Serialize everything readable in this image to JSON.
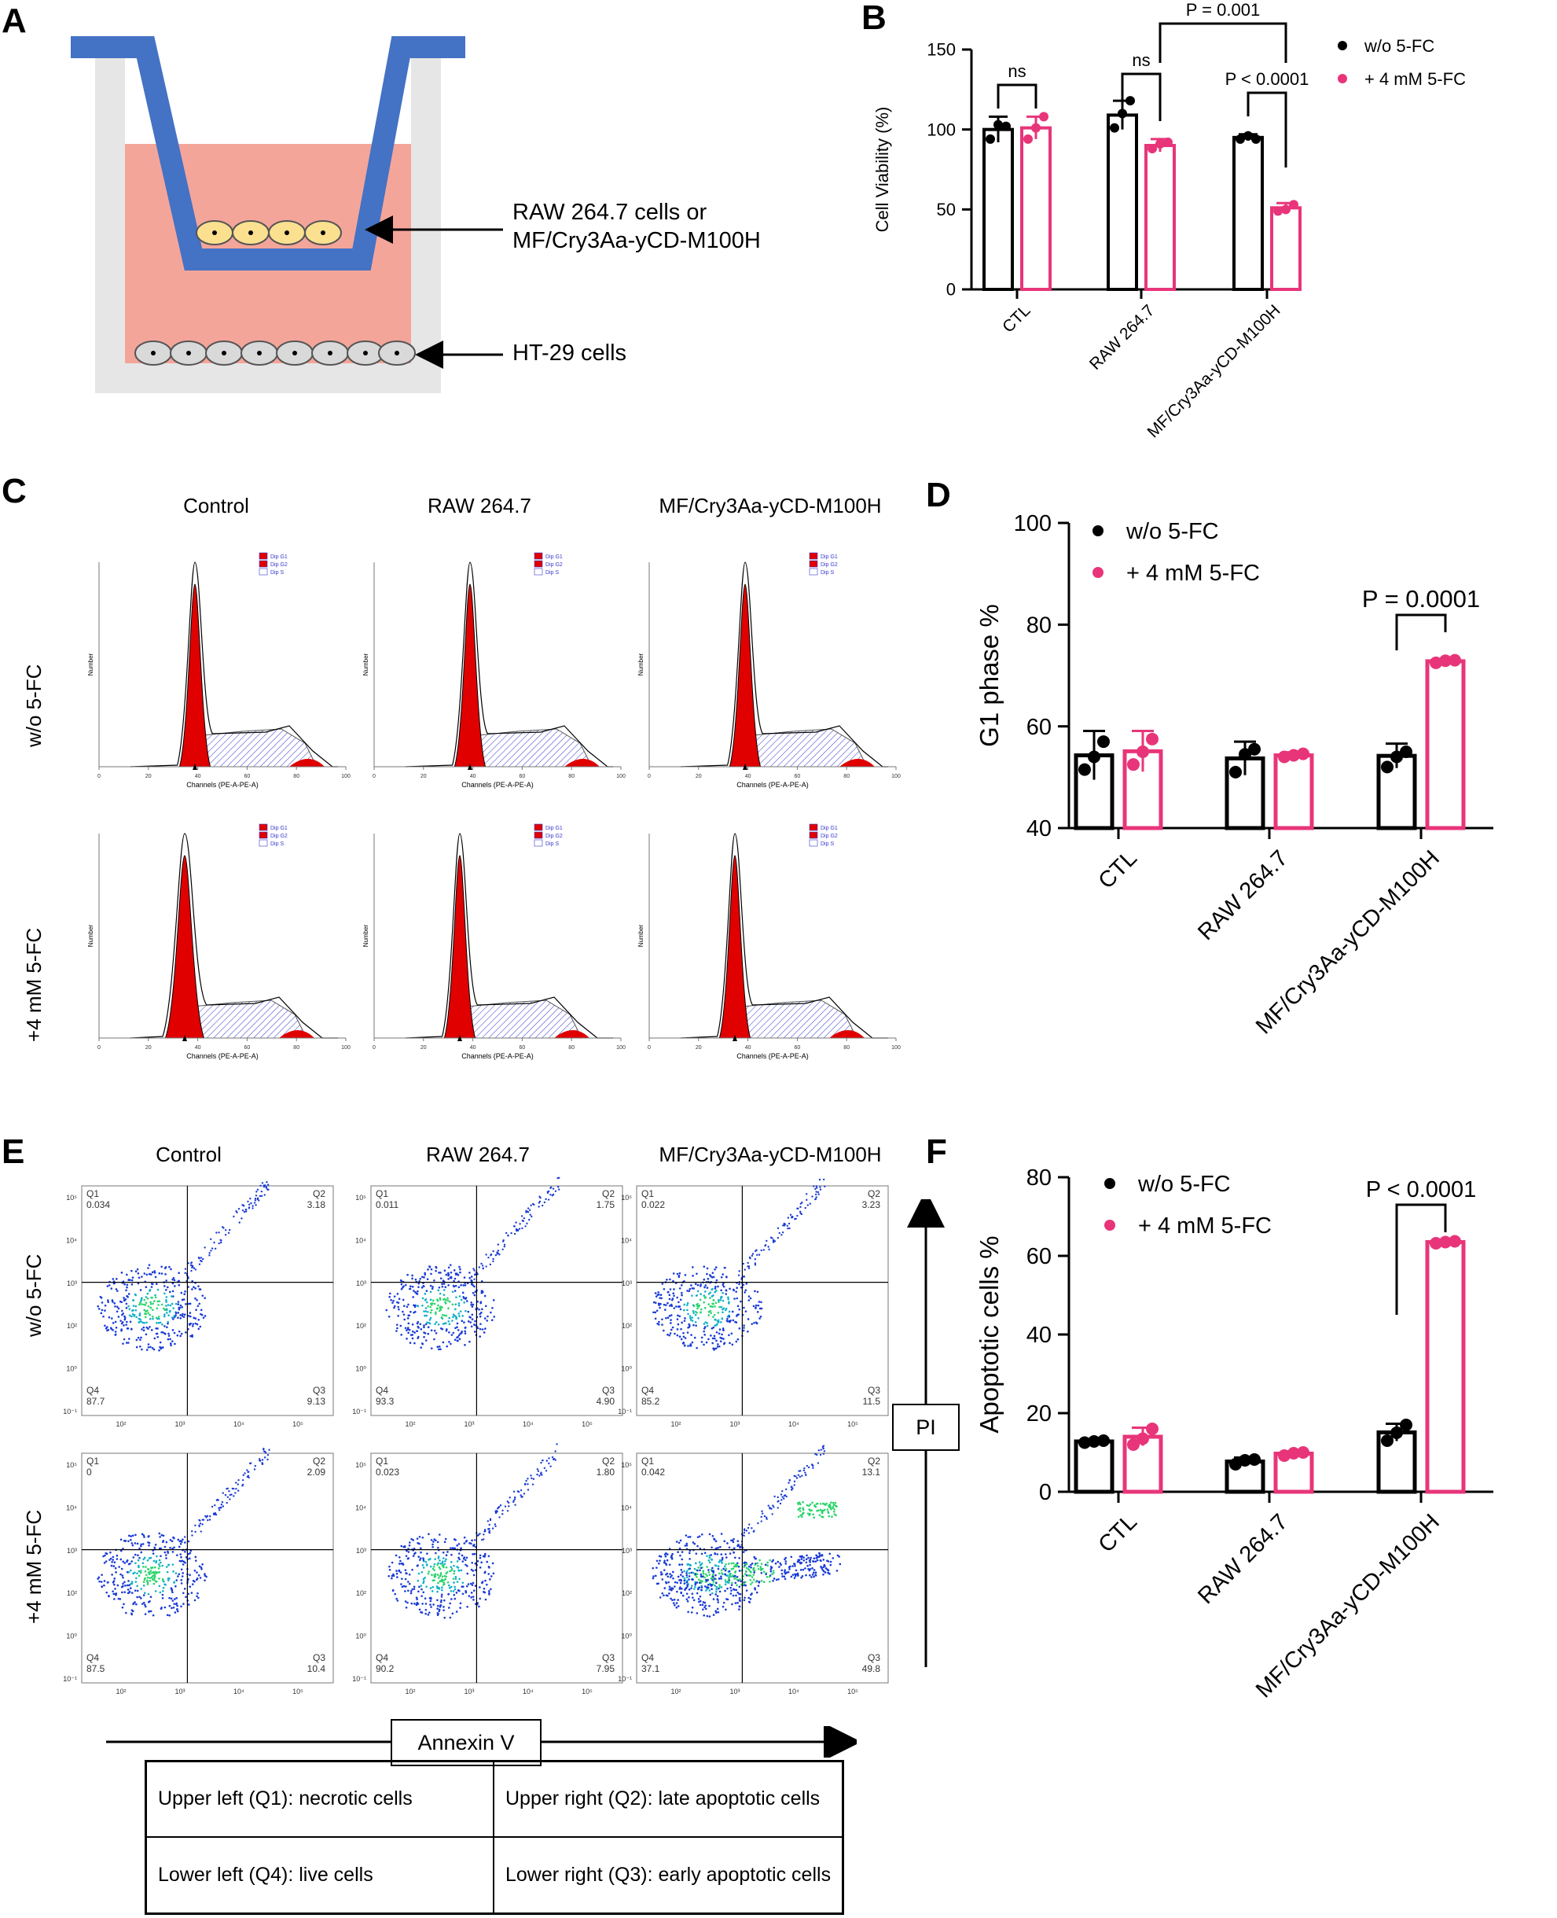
{
  "panels": {
    "a": "A",
    "b": "B",
    "c": "C",
    "d": "D",
    "e": "E",
    "f": "F"
  },
  "schematic": {
    "insert_label_line1": "RAW 264.7 cells or",
    "insert_label_line2": "MF/Cry3Aa-yCD-M100H",
    "bottom_label": "HT-29 cells"
  },
  "legend": {
    "w": "w/o 5-FC",
    "p": "+ 4 mM 5-FC"
  },
  "colors": {
    "w": "#000000",
    "p": "#e8357a",
    "insert": "#4472c4",
    "medium": "#f4a59a",
    "well": "#e6e6e6",
    "hist_red": "#e00000",
    "hatch": "#3a3ad0"
  },
  "conditions": {
    "control": "Control",
    "raw": "RAW 264.7",
    "mf": "MF/Cry3Aa-yCD-M100H",
    "row1": "w/o 5-FC",
    "row2": "+4 mM 5-FC"
  },
  "histogram": {
    "legend": [
      "Dip G1",
      "Dip G2",
      "Dip S"
    ],
    "xlabel": "Channels (PE-A-PE-A)",
    "ylabel": "Number",
    "xticks": [
      "0",
      "20",
      "40",
      "60",
      "80",
      "100"
    ]
  },
  "flow": {
    "quadrants": [
      {
        "q1": "0.034",
        "q2": "3.18",
        "q3": "9.13",
        "q4": "87.7"
      },
      {
        "q1": "0.011",
        "q2": "1.75",
        "q3": "4.90",
        "q4": "93.3"
      },
      {
        "q1": "0.022",
        "q2": "3.23",
        "q3": "11.5",
        "q4": "85.2"
      },
      {
        "q1": "0",
        "q2": "2.09",
        "q3": "10.4",
        "q4": "87.5"
      },
      {
        "q1": "0.023",
        "q2": "1.80",
        "q3": "7.95",
        "q4": "90.2"
      },
      {
        "q1": "0.042",
        "q2": "13.1",
        "q3": "49.8",
        "q4": "37.1"
      }
    ],
    "qnames": [
      "Q1",
      "Q2",
      "Q3",
      "Q4"
    ],
    "yaxis_label": "PI",
    "xaxis_label": "Annexin V",
    "ticks": [
      "10⁵",
      "10⁴",
      "10³",
      "10²",
      "10⁰",
      "10⁻¹"
    ],
    "xticks": [
      "10²",
      "10³",
      "10⁴",
      "10⁵"
    ]
  },
  "table": {
    "ul": "Upper left (Q1): necrotic cells",
    "ur": "Upper right (Q2): late apoptotic cells",
    "ll": "Lower left (Q4): live cells",
    "lr": "Lower right (Q3): early apoptotic cells"
  },
  "chart_data": [
    {
      "id": "B",
      "type": "bar",
      "categories": [
        "CTL",
        "RAW 264.7",
        "MF/Cry3Aa-yCD-M100H"
      ],
      "series": [
        {
          "name": "w/o 5-FC",
          "values": [
            100,
            109,
            95
          ],
          "err": [
            8,
            9,
            2
          ],
          "points": [
            [
              94,
              103,
              102
            ],
            [
              101,
              110,
              118
            ],
            [
              94,
              96,
              94
            ]
          ]
        },
        {
          "name": "+ 4 mM 5-FC",
          "values": [
            101,
            90,
            51
          ],
          "err": [
            7,
            4,
            3
          ],
          "points": [
            [
              94,
              101,
              108
            ],
            [
              88,
              91,
              92
            ],
            [
              49,
              50,
              53
            ]
          ]
        }
      ],
      "ylabel": "Cell Viability (%)",
      "ylim": [
        0,
        150
      ],
      "yticks": [
        "0",
        "50",
        "100",
        "150"
      ],
      "annotations": [
        {
          "text": "ns",
          "a": [
            0,
            0
          ],
          "b": [
            0,
            1
          ]
        },
        {
          "text": "ns",
          "a": [
            1,
            0
          ],
          "b": [
            1,
            1
          ]
        },
        {
          "text": "P < 0.0001",
          "a": [
            2,
            0
          ],
          "b": [
            2,
            1
          ]
        },
        {
          "text": "P = 0.001",
          "a": [
            1,
            1
          ],
          "b": [
            2,
            1
          ]
        }
      ]
    },
    {
      "id": "D",
      "type": "bar",
      "categories": [
        "CTL",
        "RAW 264.7",
        "MF/Cry3Aa-yCD-M100H"
      ],
      "series": [
        {
          "name": "w/o 5-FC",
          "values": [
            54.3,
            53.7,
            54.2
          ],
          "err": [
            4.8,
            3.3,
            2.4
          ],
          "points": [
            [
              51.5,
              54,
              57
            ],
            [
              51,
              54.5,
              55.5
            ],
            [
              52,
              54,
              55
            ]
          ]
        },
        {
          "name": "+ 4 mM 5-FC",
          "values": [
            55.1,
            54.3,
            72.8
          ],
          "err": [
            4,
            0.6,
            0.3
          ],
          "points": [
            [
              52.5,
              55,
              57.5
            ],
            [
              54,
              54.3,
              54.6
            ],
            [
              72.5,
              72.9,
              73
            ]
          ]
        }
      ],
      "ylabel": "G1 phase %",
      "ylim": [
        40,
        100
      ],
      "yticks": [
        "40",
        "60",
        "80",
        "100"
      ],
      "annotations": [
        {
          "text": "P = 0.0001",
          "a": [
            2,
            0
          ],
          "b": [
            2,
            1
          ]
        }
      ]
    },
    {
      "id": "F",
      "type": "bar",
      "categories": [
        "CTL",
        "RAW 264.7",
        "MF/Cry3Aa-yCD-M100H"
      ],
      "series": [
        {
          "name": "w/o 5-FC",
          "values": [
            12.8,
            7.7,
            15.1
          ],
          "err": [
            0.4,
            1,
            2.2
          ],
          "points": [
            [
              12.5,
              12.8,
              13
            ],
            [
              7,
              8,
              8.2
            ],
            [
              13,
              15,
              17
            ]
          ]
        },
        {
          "name": "+ 4 mM 5-FC",
          "values": [
            14,
            9.7,
            63.5
          ],
          "err": [
            2.3,
            0.6,
            0.4
          ],
          "points": [
            [
              12,
              13.5,
              16
            ],
            [
              9.2,
              9.8,
              10
            ],
            [
              63.2,
              63.5,
              63.7
            ]
          ]
        }
      ],
      "ylabel": "Apoptotic cells %",
      "ylim": [
        0,
        80
      ],
      "yticks": [
        "0",
        "20",
        "40",
        "60",
        "80"
      ],
      "annotations": [
        {
          "text": "P < 0.0001",
          "a": [
            2,
            0
          ],
          "b": [
            2,
            1
          ]
        }
      ]
    }
  ]
}
